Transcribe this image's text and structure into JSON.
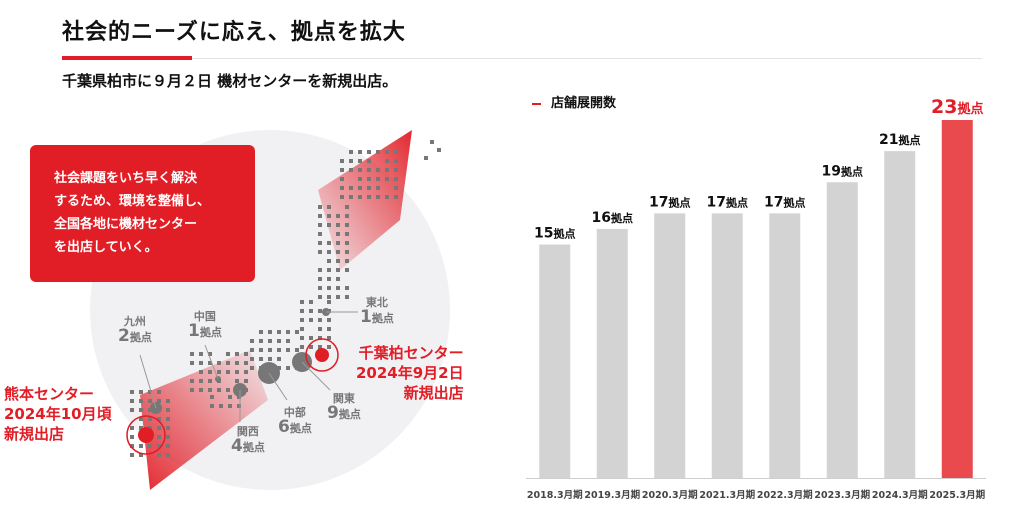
{
  "title": "社会的ニーズに応え、拠点を拡大",
  "subtitle": "千葉県柏市に９月２日 機材センターを新規出店。",
  "callout": {
    "lines": [
      "社会課題をいち早く解決",
      "するため、環境を整備し、",
      "全国各地に機材センター",
      "を出店していく。"
    ]
  },
  "regions": [
    {
      "name": "九州",
      "count": "2",
      "unit": "拠点"
    },
    {
      "name": "中国",
      "count": "1",
      "unit": "拠点"
    },
    {
      "name": "東北",
      "count": "1",
      "unit": "拠点"
    },
    {
      "name": "関西",
      "count": "4",
      "unit": "拠点"
    },
    {
      "name": "中部",
      "count": "6",
      "unit": "拠点"
    },
    {
      "name": "関東",
      "count": "9",
      "unit": "拠点"
    }
  ],
  "new_sites": [
    {
      "lines": [
        "熊本センター",
        "2024年10月頃",
        "新規出店"
      ]
    },
    {
      "lines": [
        "千葉柏センター",
        "2024年9月2日",
        "新規出店"
      ]
    }
  ],
  "colors": {
    "accent": "#e11d26",
    "bar": "#d3d3d3",
    "bar_highlight": "#e84a4d",
    "map_dot": "#777777"
  },
  "chart_data": {
    "type": "bar",
    "title": "店舗展開数",
    "categories": [
      "2018.3月期",
      "2019.3月期",
      "2020.3月期",
      "2021.3月期",
      "2022.3月期",
      "2023.3月期",
      "2024.3月期",
      "2025.3月期"
    ],
    "values": [
      15,
      16,
      17,
      17,
      17,
      19,
      21,
      23
    ],
    "unit": "拠点",
    "highlight_index": 7,
    "ylim": [
      0,
      23
    ]
  }
}
